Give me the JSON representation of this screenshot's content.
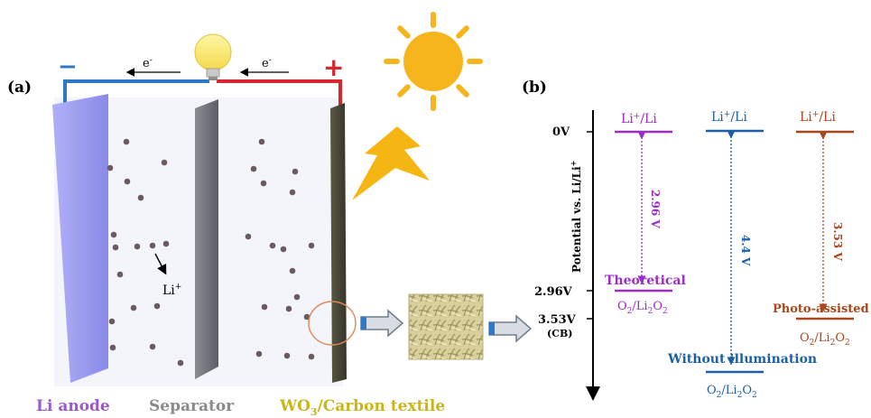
{
  "panel_a": {
    "label": "(a)",
    "minus_sign": "−",
    "plus_sign": "+",
    "electron_left": "e",
    "electron_right": "e",
    "electron_charge": "-",
    "li_ion": "Li",
    "li_ion_charge": "+",
    "li_anode_label": "Li anode",
    "separator_label": "Separator",
    "cathode_label_prefix": "WO",
    "cathode_label_sub": "3",
    "cathode_label_suffix": "/Carbon textile",
    "colors": {
      "anode": "#9b9bf2",
      "separator": "#6e7178",
      "cathode": "#4a4a38",
      "wire_negative": "#2f78c4",
      "wire_positive": "#d8262e",
      "sun": "#f6b51c",
      "lightning": "#f5b512",
      "ion": "#6b5a5e",
      "anode_label": "#9b59d0",
      "separator_label": "#8a8a8a",
      "cathode_label": "#c8b619"
    }
  },
  "panel_b": {
    "label": "(b)",
    "y_axis_label": "Potential vs. Li/Li",
    "y_axis_label_sup": "+",
    "ticks": [
      "0V",
      "2.96V",
      "3.53V"
    ],
    "cb_label": "(CB)",
    "columns": [
      {
        "top_label": "Li",
        "top_sup": "+",
        "top_suffix": "/Li",
        "gap_label": "2.96 V",
        "bottom_name": "Theoretical",
        "bottom_species": "O",
        "color": "#9b2fc4"
      },
      {
        "top_label": "Li",
        "top_sup": "+",
        "top_suffix": "/Li",
        "gap_label": "4.4 V",
        "bottom_name": "Without illumination",
        "bottom_species": "O",
        "color": "#1f5fa8"
      },
      {
        "top_label": "Li",
        "top_sup": "+",
        "top_suffix": "/Li",
        "gap_label": "3.53 V",
        "bottom_name": "Photo-assisted",
        "bottom_species": "O",
        "color": "#a8461c"
      }
    ],
    "species_sub_2": "2",
    "species_slash_li": "/Li"
  }
}
